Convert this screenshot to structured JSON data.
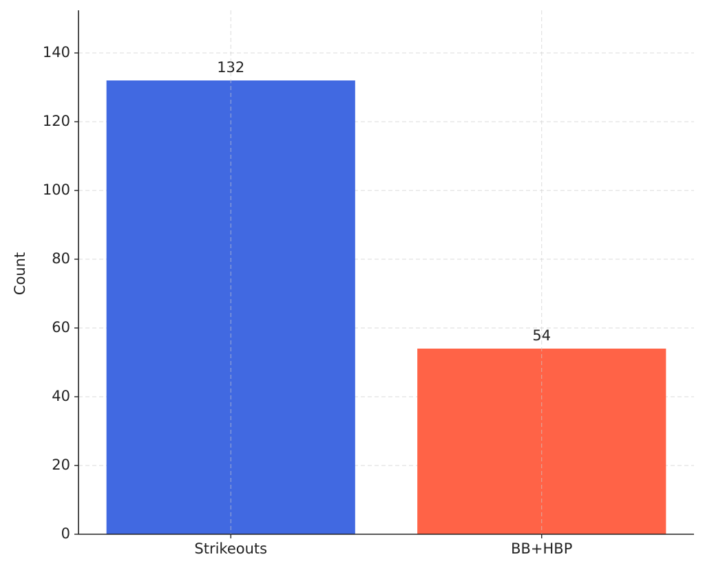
{
  "chart_data": {
    "type": "bar",
    "ylabel": "Count",
    "categories": [
      "Strikeouts",
      "BB+HBP"
    ],
    "values": [
      132,
      54
    ],
    "colors": [
      "#4169e1",
      "#ff6347"
    ],
    "ylim": [
      0,
      152.4
    ],
    "yticks": [
      0,
      20,
      40,
      60,
      80,
      100,
      120,
      140
    ],
    "grid": true
  }
}
